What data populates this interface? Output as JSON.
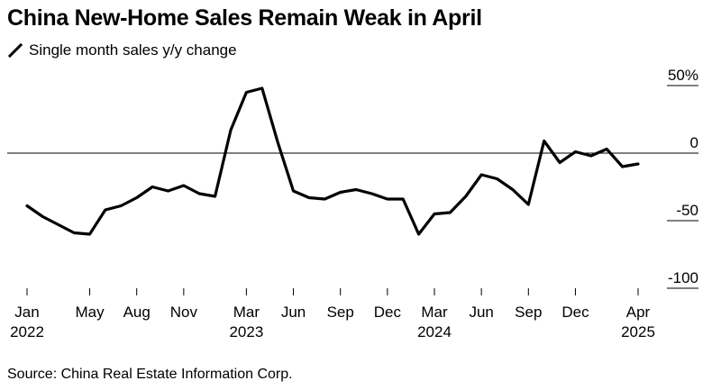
{
  "chart_data": {
    "type": "line",
    "title": "China New-Home Sales Remain Weak in April",
    "xlabel": "",
    "ylabel": "",
    "series": [
      {
        "name": "Single month sales y/y change",
        "color": "#000000",
        "points": [
          [
            "2022-01",
            -39
          ],
          [
            "2022-02",
            -47
          ],
          [
            "2022-03",
            -53
          ],
          [
            "2022-04",
            -59
          ],
          [
            "2022-05",
            -60
          ],
          [
            "2022-06",
            -42
          ],
          [
            "2022-07",
            -39
          ],
          [
            "2022-08",
            -33
          ],
          [
            "2022-09",
            -25
          ],
          [
            "2022-10",
            -28
          ],
          [
            "2022-11",
            -24
          ],
          [
            "2022-12",
            -30
          ],
          [
            "2023-01",
            -32
          ],
          [
            "2023-02",
            17
          ],
          [
            "2023-03",
            45
          ],
          [
            "2023-04",
            48
          ],
          [
            "2023-05",
            8
          ],
          [
            "2023-06",
            -28
          ],
          [
            "2023-07",
            -33
          ],
          [
            "2023-08",
            -34
          ],
          [
            "2023-09",
            -29
          ],
          [
            "2023-10",
            -27
          ],
          [
            "2023-11",
            -30
          ],
          [
            "2023-12",
            -34
          ],
          [
            "2024-01",
            -34
          ],
          [
            "2024-02",
            -60
          ],
          [
            "2024-03",
            -45
          ],
          [
            "2024-04",
            -44
          ],
          [
            "2024-05",
            -32
          ],
          [
            "2024-06",
            -16
          ],
          [
            "2024-07",
            -19
          ],
          [
            "2024-08",
            -27
          ],
          [
            "2024-09",
            -38
          ],
          [
            "2024-10",
            9
          ],
          [
            "2024-11",
            -7
          ],
          [
            "2024-12",
            1
          ],
          [
            "2025-01",
            -2
          ],
          [
            "2025-02",
            3
          ],
          [
            "2025-03",
            -10
          ],
          [
            "2025-04",
            -8
          ]
        ]
      }
    ],
    "x_range": [
      "2022-01",
      "2025-05"
    ],
    "ylim": [
      -100,
      50
    ],
    "y_ticks": [
      {
        "value": 50,
        "label": "50%"
      },
      {
        "value": 0,
        "label": "0"
      },
      {
        "value": -50,
        "label": "-50"
      },
      {
        "value": -100,
        "label": "-100"
      }
    ],
    "x_ticks": [
      {
        "date": "2022-01",
        "label": "Jan",
        "year": "2022"
      },
      {
        "date": "2022-05",
        "label": "May",
        "year": ""
      },
      {
        "date": "2022-08",
        "label": "Aug",
        "year": ""
      },
      {
        "date": "2022-11",
        "label": "Nov",
        "year": ""
      },
      {
        "date": "2023-03",
        "label": "Mar",
        "year": "2023"
      },
      {
        "date": "2023-06",
        "label": "Jun",
        "year": ""
      },
      {
        "date": "2023-09",
        "label": "Sep",
        "year": ""
      },
      {
        "date": "2023-12",
        "label": "Dec",
        "year": ""
      },
      {
        "date": "2024-03",
        "label": "Mar",
        "year": "2024"
      },
      {
        "date": "2024-06",
        "label": "Jun",
        "year": ""
      },
      {
        "date": "2024-09",
        "label": "Sep",
        "year": ""
      },
      {
        "date": "2024-12",
        "label": "Dec",
        "year": ""
      },
      {
        "date": "2025-04",
        "label": "Apr",
        "year": "2025"
      }
    ],
    "zero_line": true,
    "grid": false,
    "legend_position": "top-left"
  },
  "source": "Source: China Real Estate Information Corp."
}
